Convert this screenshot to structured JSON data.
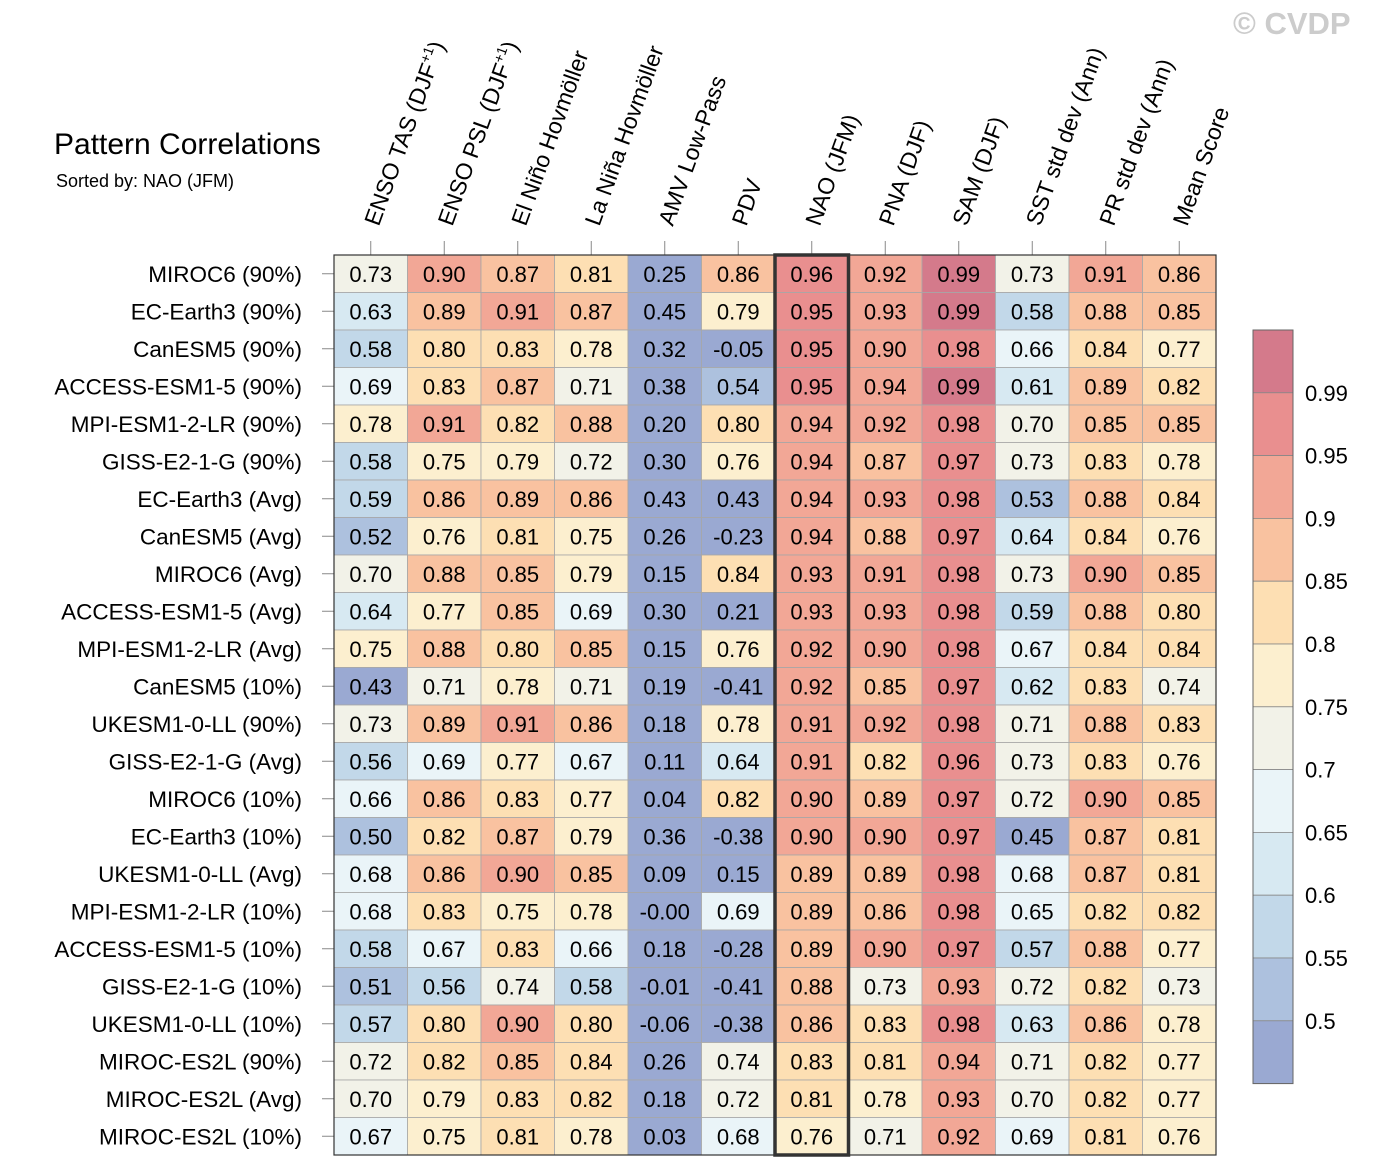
{
  "watermark": "© CVDP",
  "title": "Pattern Correlations",
  "subtitle": "Sorted by: NAO (JFM)",
  "chart_data": {
    "type": "heatmap",
    "title": "Pattern Correlations",
    "subtitle": "Sorted by: NAO (JFM)",
    "sorted_by": "NAO (JFM)",
    "highlighted_column": "NAO (JFM)",
    "columns": [
      {
        "text": "ENSO TAS (DJF",
        "sup": "+1",
        "tail": ")"
      },
      {
        "text": "ENSO PSL (DJF",
        "sup": "+1",
        "tail": ")"
      },
      {
        "text": "El Niño Hovmöller",
        "sup": "",
        "tail": ""
      },
      {
        "text": "La Niña Hovmöller",
        "sup": "",
        "tail": ""
      },
      {
        "text": "AMV Low-Pass",
        "sup": "",
        "tail": ""
      },
      {
        "text": "PDV",
        "sup": "",
        "tail": ""
      },
      {
        "text": "NAO (JFM)",
        "sup": "",
        "tail": ""
      },
      {
        "text": "PNA (DJF)",
        "sup": "",
        "tail": ""
      },
      {
        "text": "SAM (DJF)",
        "sup": "",
        "tail": ""
      },
      {
        "text": "SST std dev (Ann)",
        "sup": "",
        "tail": ""
      },
      {
        "text": "PR std dev (Ann)",
        "sup": "",
        "tail": ""
      },
      {
        "text": "Mean Score",
        "sup": "",
        "tail": ""
      }
    ],
    "rows": [
      "MIROC6 (90%)",
      "EC-Earth3 (90%)",
      "CanESM5 (90%)",
      "ACCESS-ESM1-5 (90%)",
      "MPI-ESM1-2-LR (90%)",
      "GISS-E2-1-G (90%)",
      "EC-Earth3 (Avg)",
      "CanESM5 (Avg)",
      "MIROC6 (Avg)",
      "ACCESS-ESM1-5 (Avg)",
      "MPI-ESM1-2-LR (Avg)",
      "CanESM5 (10%)",
      "UKESM1-0-LL (90%)",
      "GISS-E2-1-G (Avg)",
      "MIROC6 (10%)",
      "EC-Earth3 (10%)",
      "UKESM1-0-LL (Avg)",
      "MPI-ESM1-2-LR (10%)",
      "ACCESS-ESM1-5 (10%)",
      "GISS-E2-1-G (10%)",
      "UKESM1-0-LL (10%)",
      "MIROC-ES2L (90%)",
      "MIROC-ES2L (Avg)",
      "MIROC-ES2L (10%)"
    ],
    "values": [
      [
        "0.73",
        "0.90",
        "0.87",
        "0.81",
        "0.25",
        "0.86",
        "0.96",
        "0.92",
        "0.99",
        "0.73",
        "0.91",
        "0.86"
      ],
      [
        "0.63",
        "0.89",
        "0.91",
        "0.87",
        "0.45",
        "0.79",
        "0.95",
        "0.93",
        "0.99",
        "0.58",
        "0.88",
        "0.85"
      ],
      [
        "0.58",
        "0.80",
        "0.83",
        "0.78",
        "0.32",
        "-0.05",
        "0.95",
        "0.90",
        "0.98",
        "0.66",
        "0.84",
        "0.77"
      ],
      [
        "0.69",
        "0.83",
        "0.87",
        "0.71",
        "0.38",
        "0.54",
        "0.95",
        "0.94",
        "0.99",
        "0.61",
        "0.89",
        "0.82"
      ],
      [
        "0.78",
        "0.91",
        "0.82",
        "0.88",
        "0.20",
        "0.80",
        "0.94",
        "0.92",
        "0.98",
        "0.70",
        "0.85",
        "0.85"
      ],
      [
        "0.58",
        "0.75",
        "0.79",
        "0.72",
        "0.30",
        "0.76",
        "0.94",
        "0.87",
        "0.97",
        "0.73",
        "0.83",
        "0.78"
      ],
      [
        "0.59",
        "0.86",
        "0.89",
        "0.86",
        "0.43",
        "0.43",
        "0.94",
        "0.93",
        "0.98",
        "0.53",
        "0.88",
        "0.84"
      ],
      [
        "0.52",
        "0.76",
        "0.81",
        "0.75",
        "0.26",
        "-0.23",
        "0.94",
        "0.88",
        "0.97",
        "0.64",
        "0.84",
        "0.76"
      ],
      [
        "0.70",
        "0.88",
        "0.85",
        "0.79",
        "0.15",
        "0.84",
        "0.93",
        "0.91",
        "0.98",
        "0.73",
        "0.90",
        "0.85"
      ],
      [
        "0.64",
        "0.77",
        "0.85",
        "0.69",
        "0.30",
        "0.21",
        "0.93",
        "0.93",
        "0.98",
        "0.59",
        "0.88",
        "0.80"
      ],
      [
        "0.75",
        "0.88",
        "0.80",
        "0.85",
        "0.15",
        "0.76",
        "0.92",
        "0.90",
        "0.98",
        "0.67",
        "0.84",
        "0.84"
      ],
      [
        "0.43",
        "0.71",
        "0.78",
        "0.71",
        "0.19",
        "-0.41",
        "0.92",
        "0.85",
        "0.97",
        "0.62",
        "0.83",
        "0.74"
      ],
      [
        "0.73",
        "0.89",
        "0.91",
        "0.86",
        "0.18",
        "0.78",
        "0.91",
        "0.92",
        "0.98",
        "0.71",
        "0.88",
        "0.83"
      ],
      [
        "0.56",
        "0.69",
        "0.77",
        "0.67",
        "0.11",
        "0.64",
        "0.91",
        "0.82",
        "0.96",
        "0.73",
        "0.83",
        "0.76"
      ],
      [
        "0.66",
        "0.86",
        "0.83",
        "0.77",
        "0.04",
        "0.82",
        "0.90",
        "0.89",
        "0.97",
        "0.72",
        "0.90",
        "0.85"
      ],
      [
        "0.50",
        "0.82",
        "0.87",
        "0.79",
        "0.36",
        "-0.38",
        "0.90",
        "0.90",
        "0.97",
        "0.45",
        "0.87",
        "0.81"
      ],
      [
        "0.68",
        "0.86",
        "0.90",
        "0.85",
        "0.09",
        "0.15",
        "0.89",
        "0.89",
        "0.98",
        "0.68",
        "0.87",
        "0.81"
      ],
      [
        "0.68",
        "0.83",
        "0.75",
        "0.78",
        "-0.00",
        "0.69",
        "0.89",
        "0.86",
        "0.98",
        "0.65",
        "0.82",
        "0.82"
      ],
      [
        "0.58",
        "0.67",
        "0.83",
        "0.66",
        "0.18",
        "-0.28",
        "0.89",
        "0.90",
        "0.97",
        "0.57",
        "0.88",
        "0.77"
      ],
      [
        "0.51",
        "0.56",
        "0.74",
        "0.58",
        "-0.01",
        "-0.41",
        "0.88",
        "0.73",
        "0.93",
        "0.72",
        "0.82",
        "0.73"
      ],
      [
        "0.57",
        "0.80",
        "0.90",
        "0.80",
        "-0.06",
        "-0.38",
        "0.86",
        "0.83",
        "0.98",
        "0.63",
        "0.86",
        "0.78"
      ],
      [
        "0.72",
        "0.82",
        "0.85",
        "0.84",
        "0.26",
        "0.74",
        "0.83",
        "0.81",
        "0.94",
        "0.71",
        "0.82",
        "0.77"
      ],
      [
        "0.70",
        "0.79",
        "0.83",
        "0.82",
        "0.18",
        "0.72",
        "0.81",
        "0.78",
        "0.93",
        "0.70",
        "0.82",
        "0.77"
      ],
      [
        "0.67",
        "0.75",
        "0.81",
        "0.78",
        "0.03",
        "0.68",
        "0.76",
        "0.71",
        "0.92",
        "0.69",
        "0.81",
        "0.76"
      ]
    ],
    "colorbar": {
      "ticks": [
        "0.5",
        "0.55",
        "0.6",
        "0.65",
        "0.7",
        "0.75",
        "0.8",
        "0.85",
        "0.9",
        "0.95",
        "0.99"
      ],
      "bounds": [
        0.5,
        0.55,
        0.6,
        0.65,
        0.7,
        0.75,
        0.8,
        0.85,
        0.9,
        0.95,
        0.99
      ],
      "colors": [
        "#9aa9d2",
        "#adc1de",
        "#c2d8e9",
        "#d7e9f2",
        "#eaf4f8",
        "#f2f2e8",
        "#fcefcf",
        "#fddfb3",
        "#f9c2a0",
        "#f2a796",
        "#e98f8f",
        "#d47a8b"
      ]
    }
  }
}
